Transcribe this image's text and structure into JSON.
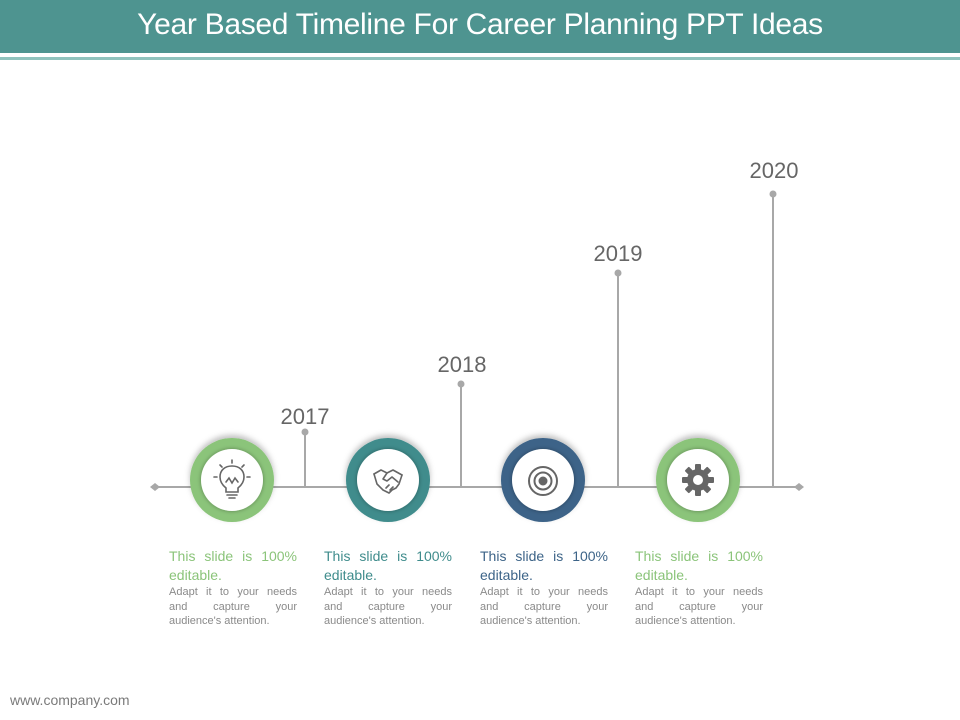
{
  "header": {
    "title": "Year Based Timeline For Career Planning PPT Ideas"
  },
  "timeline": {
    "items": [
      {
        "year": "2017",
        "icon": "lightbulb-icon",
        "ring_color": "#8bc47a",
        "heading": "This slide is 100% editable.",
        "body": "Adapt it to your needs and capture your audience's attention."
      },
      {
        "year": "2018",
        "icon": "handshake-icon",
        "ring_color": "#3f8c8c",
        "heading": "This slide is 100% editable.",
        "body": "Adapt it to your needs and capture your audience's attention."
      },
      {
        "year": "2019",
        "icon": "target-icon",
        "ring_color": "#3d6488",
        "heading": "This slide is 100% editable.",
        "body": "Adapt it to your needs and capture your audience's attention."
      },
      {
        "year": "2020",
        "icon": "gear-icon",
        "ring_color": "#8bc47a",
        "heading": "This slide is 100% editable.",
        "body": "Adapt it to your needs and capture your audience's attention."
      }
    ]
  },
  "footer": {
    "url": "www.company.com"
  }
}
